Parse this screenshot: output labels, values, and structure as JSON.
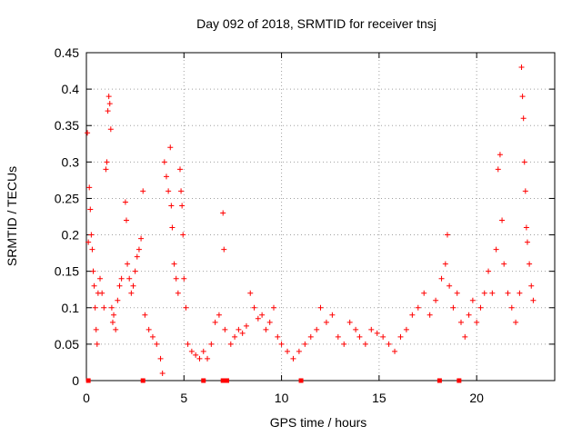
{
  "chart_data": {
    "type": "scatter",
    "title": "Day 092 of 2018, SRMTID for receiver tnsj",
    "xlabel": "GPS time / hours",
    "ylabel": "SRMTID / TECUs",
    "xlim": [
      0,
      24
    ],
    "ylim": [
      0,
      0.45
    ],
    "x_ticks": [
      0,
      5,
      10,
      15,
      20
    ],
    "y_ticks": [
      0,
      0.05,
      0.1,
      0.15,
      0.2,
      0.25,
      0.3,
      0.35,
      0.4,
      0.45
    ],
    "x_tick_labels": [
      "0",
      "5",
      "10",
      "15",
      "20"
    ],
    "y_tick_labels": [
      "0",
      "0.05",
      "0.1",
      "0.15",
      "0.2",
      "0.25",
      "0.3",
      "0.35",
      "0.4",
      "0.45"
    ],
    "grid": true,
    "marker": "+",
    "color": "#ff0000",
    "series": [
      {
        "name": "SRMTID",
        "points": [
          [
            0.05,
            0.34
          ],
          [
            0.1,
            0.19
          ],
          [
            0.15,
            0.265
          ],
          [
            0.2,
            0.235
          ],
          [
            0.25,
            0.2
          ],
          [
            0.3,
            0.18
          ],
          [
            0.35,
            0.15
          ],
          [
            0.4,
            0.13
          ],
          [
            0.45,
            0.1
          ],
          [
            0.5,
            0.07
          ],
          [
            0.55,
            0.05
          ],
          [
            0.6,
            0.12
          ],
          [
            0.7,
            0.14
          ],
          [
            0.8,
            0.12
          ],
          [
            0.9,
            0.1
          ],
          [
            1.0,
            0.29
          ],
          [
            1.05,
            0.3
          ],
          [
            1.1,
            0.37
          ],
          [
            1.15,
            0.39
          ],
          [
            1.2,
            0.38
          ],
          [
            1.25,
            0.345
          ],
          [
            1.3,
            0.1
          ],
          [
            1.35,
            0.08
          ],
          [
            1.4,
            0.09
          ],
          [
            1.5,
            0.07
          ],
          [
            1.6,
            0.11
          ],
          [
            1.7,
            0.13
          ],
          [
            1.8,
            0.14
          ],
          [
            2.0,
            0.245
          ],
          [
            2.05,
            0.22
          ],
          [
            2.1,
            0.16
          ],
          [
            2.2,
            0.14
          ],
          [
            2.3,
            0.12
          ],
          [
            2.4,
            0.13
          ],
          [
            2.5,
            0.15
          ],
          [
            2.6,
            0.17
          ],
          [
            2.7,
            0.18
          ],
          [
            2.8,
            0.195
          ],
          [
            2.9,
            0.26
          ],
          [
            3.0,
            0.09
          ],
          [
            3.2,
            0.07
          ],
          [
            3.4,
            0.06
          ],
          [
            3.6,
            0.05
          ],
          [
            3.8,
            0.03
          ],
          [
            3.9,
            0.01
          ],
          [
            4.0,
            0.3
          ],
          [
            4.1,
            0.28
          ],
          [
            4.2,
            0.26
          ],
          [
            4.3,
            0.32
          ],
          [
            4.35,
            0.24
          ],
          [
            4.4,
            0.21
          ],
          [
            4.5,
            0.16
          ],
          [
            4.6,
            0.14
          ],
          [
            4.7,
            0.12
          ],
          [
            4.8,
            0.29
          ],
          [
            4.85,
            0.26
          ],
          [
            4.9,
            0.24
          ],
          [
            4.95,
            0.2
          ],
          [
            5.0,
            0.14
          ],
          [
            5.1,
            0.1
          ],
          [
            5.2,
            0.05
          ],
          [
            5.4,
            0.04
          ],
          [
            5.6,
            0.035
          ],
          [
            5.8,
            0.03
          ],
          [
            6.0,
            0.04
          ],
          [
            6.2,
            0.03
          ],
          [
            6.4,
            0.05
          ],
          [
            6.6,
            0.08
          ],
          [
            6.8,
            0.09
          ],
          [
            7.0,
            0.23
          ],
          [
            7.05,
            0.18
          ],
          [
            7.1,
            0.07
          ],
          [
            7.4,
            0.05
          ],
          [
            7.6,
            0.06
          ],
          [
            7.8,
            0.07
          ],
          [
            8.0,
            0.065
          ],
          [
            8.2,
            0.075
          ],
          [
            8.4,
            0.12
          ],
          [
            8.6,
            0.1
          ],
          [
            8.8,
            0.085
          ],
          [
            9.0,
            0.09
          ],
          [
            9.2,
            0.07
          ],
          [
            9.4,
            0.08
          ],
          [
            9.6,
            0.1
          ],
          [
            9.8,
            0.06
          ],
          [
            10.0,
            0.05
          ],
          [
            10.3,
            0.04
          ],
          [
            10.6,
            0.03
          ],
          [
            10.9,
            0.04
          ],
          [
            11.2,
            0.05
          ],
          [
            11.5,
            0.06
          ],
          [
            11.8,
            0.07
          ],
          [
            12.0,
            0.1
          ],
          [
            12.3,
            0.08
          ],
          [
            12.6,
            0.09
          ],
          [
            12.9,
            0.06
          ],
          [
            13.2,
            0.05
          ],
          [
            13.5,
            0.08
          ],
          [
            13.8,
            0.07
          ],
          [
            14.0,
            0.06
          ],
          [
            14.3,
            0.05
          ],
          [
            14.6,
            0.07
          ],
          [
            14.9,
            0.065
          ],
          [
            15.2,
            0.06
          ],
          [
            15.5,
            0.05
          ],
          [
            15.8,
            0.04
          ],
          [
            16.1,
            0.06
          ],
          [
            16.4,
            0.07
          ],
          [
            16.7,
            0.09
          ],
          [
            17.0,
            0.1
          ],
          [
            17.3,
            0.12
          ],
          [
            17.6,
            0.09
          ],
          [
            17.9,
            0.11
          ],
          [
            18.2,
            0.14
          ],
          [
            18.4,
            0.16
          ],
          [
            18.5,
            0.2
          ],
          [
            18.6,
            0.13
          ],
          [
            18.8,
            0.1
          ],
          [
            19.0,
            0.12
          ],
          [
            19.2,
            0.08
          ],
          [
            19.4,
            0.06
          ],
          [
            19.6,
            0.09
          ],
          [
            19.8,
            0.11
          ],
          [
            20.0,
            0.08
          ],
          [
            20.2,
            0.1
          ],
          [
            20.4,
            0.12
          ],
          [
            20.6,
            0.15
          ],
          [
            20.8,
            0.12
          ],
          [
            21.0,
            0.18
          ],
          [
            21.1,
            0.29
          ],
          [
            21.2,
            0.31
          ],
          [
            21.3,
            0.22
          ],
          [
            21.4,
            0.16
          ],
          [
            21.6,
            0.12
          ],
          [
            21.8,
            0.1
          ],
          [
            22.0,
            0.08
          ],
          [
            22.2,
            0.12
          ],
          [
            22.3,
            0.43
          ],
          [
            22.35,
            0.39
          ],
          [
            22.4,
            0.36
          ],
          [
            22.45,
            0.3
          ],
          [
            22.5,
            0.26
          ],
          [
            22.55,
            0.21
          ],
          [
            22.6,
            0.19
          ],
          [
            22.7,
            0.16
          ],
          [
            22.8,
            0.13
          ],
          [
            22.9,
            0.11
          ]
        ]
      }
    ],
    "baseline_points": [
      0.1,
      2.9,
      6.0,
      7.0,
      7.2,
      11.0,
      18.1,
      19.1
    ]
  }
}
